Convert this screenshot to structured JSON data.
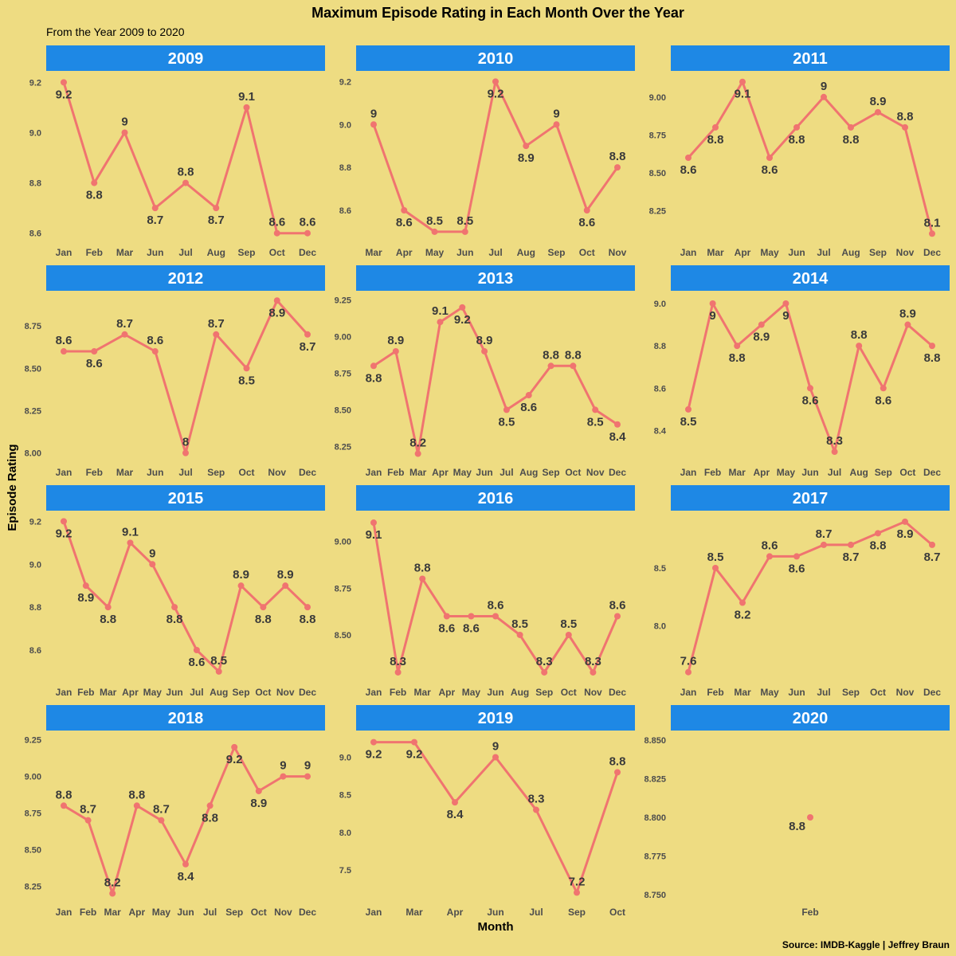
{
  "chart_data": {
    "type": "line",
    "title": "Maximum Episode Rating in Each Month Over the Year",
    "subtitle": "From the Year 2009 to 2020",
    "xlabel": "Month",
    "ylabel": "Episode Rating",
    "caption": "Source: IMDB-Kaggle | Jeffrey Braun",
    "colors": {
      "background": "#EEDC82",
      "strip": "#1E88E5",
      "line": "#F07470",
      "text": "#3A3A3A"
    },
    "facets": [
      {
        "year": "2009",
        "months": [
          "Jan",
          "Feb",
          "Mar",
          "Jun",
          "Jul",
          "Aug",
          "Sep",
          "Oct",
          "Dec"
        ],
        "values": [
          9.2,
          8.8,
          9.0,
          8.7,
          8.8,
          8.7,
          9.1,
          8.6,
          8.6
        ],
        "labels": [
          "9.2",
          "8.8",
          "9",
          "8.7",
          "8.8",
          "8.7",
          "9.1",
          "8.6",
          "8.6"
        ],
        "yticks": [
          "8.6",
          "8.8",
          "9.0",
          "9.2"
        ],
        "ylim": [
          8.58,
          9.22
        ]
      },
      {
        "year": "2010",
        "months": [
          "Mar",
          "Apr",
          "May",
          "Jun",
          "Jul",
          "Aug",
          "Sep",
          "Oct",
          "Nov"
        ],
        "values": [
          9.0,
          8.6,
          8.5,
          8.5,
          9.2,
          8.9,
          9.0,
          8.6,
          8.8
        ],
        "labels": [
          "9",
          "8.6",
          "8.5",
          "8.5",
          "9.2",
          "8.9",
          "9",
          "8.6",
          "8.8"
        ],
        "yticks": [
          "8.6",
          "8.8",
          "9.0",
          "9.2"
        ],
        "ylim": [
          8.47,
          9.22
        ]
      },
      {
        "year": "2011",
        "months": [
          "Jan",
          "Mar",
          "Apr",
          "May",
          "Jun",
          "Jul",
          "Aug",
          "Sep",
          "Nov",
          "Dec"
        ],
        "values": [
          8.6,
          8.8,
          9.1,
          8.6,
          8.8,
          9.0,
          8.8,
          8.9,
          8.8,
          8.1
        ],
        "labels": [
          "8.6",
          "8.8",
          "9.1",
          "8.6",
          "8.8",
          "9",
          "8.8",
          "8.9",
          "8.8",
          "8.1"
        ],
        "yticks": [
          "8.25",
          "8.50",
          "8.75",
          "9.00"
        ],
        "ylim": [
          8.07,
          9.13
        ]
      },
      {
        "year": "2012",
        "months": [
          "Jan",
          "Feb",
          "Mar",
          "Jun",
          "Jul",
          "Sep",
          "Oct",
          "Nov",
          "Dec"
        ],
        "values": [
          8.6,
          8.6,
          8.7,
          8.6,
          8.0,
          8.7,
          8.5,
          8.9,
          8.7
        ],
        "labels": [
          "8.6",
          "8.6",
          "8.7",
          "8.6",
          "8",
          "8.7",
          "8.5",
          "8.9",
          "8.7"
        ],
        "yticks": [
          "8.00",
          "8.25",
          "8.50",
          "8.75"
        ],
        "ylim": [
          7.97,
          8.92
        ]
      },
      {
        "year": "2013",
        "months": [
          "Jan",
          "Feb",
          "Mar",
          "Apr",
          "May",
          "Jun",
          "Jul",
          "Aug",
          "Sep",
          "Oct",
          "Nov",
          "Dec"
        ],
        "values": [
          8.8,
          8.9,
          8.2,
          9.1,
          9.2,
          8.9,
          8.5,
          8.6,
          8.8,
          8.8,
          8.5,
          8.4
        ],
        "labels": [
          "8.8",
          "8.9",
          "8.2",
          "9.1",
          "9.2",
          "8.9",
          "8.5",
          "8.6",
          "8.8",
          "8.8",
          "8.5",
          "8.4"
        ],
        "yticks": [
          "8.25",
          "8.50",
          "8.75",
          "9.00",
          "9.25"
        ],
        "ylim": [
          8.17,
          9.27
        ]
      },
      {
        "year": "2014",
        "months": [
          "Jan",
          "Feb",
          "Mar",
          "Apr",
          "May",
          "Jun",
          "Jul",
          "Aug",
          "Sep",
          "Oct",
          "Dec"
        ],
        "values": [
          8.5,
          9.0,
          8.8,
          8.9,
          9.0,
          8.6,
          8.3,
          8.8,
          8.6,
          8.9,
          8.8
        ],
        "labels": [
          "8.5",
          "9",
          "8.8",
          "8.9",
          "9",
          "8.6",
          "8.3",
          "8.8",
          "8.6",
          "8.9",
          "8.8"
        ],
        "yticks": [
          "8.4",
          "8.6",
          "8.8",
          "9.0"
        ],
        "ylim": [
          8.27,
          9.03
        ]
      },
      {
        "year": "2015",
        "months": [
          "Jan",
          "Feb",
          "Mar",
          "Apr",
          "May",
          "Jun",
          "Jul",
          "Aug",
          "Sep",
          "Oct",
          "Nov",
          "Dec"
        ],
        "values": [
          9.2,
          8.9,
          8.8,
          9.1,
          9.0,
          8.8,
          8.6,
          8.5,
          8.9,
          8.8,
          8.9,
          8.8
        ],
        "labels": [
          "9.2",
          "8.9",
          "8.8",
          "9.1",
          "9",
          "8.8",
          "8.6",
          "8.5",
          "8.9",
          "8.8",
          "8.9",
          "8.8"
        ],
        "yticks": [
          "8.6",
          "8.8",
          "9.0",
          "9.2"
        ],
        "ylim": [
          8.47,
          9.22
        ]
      },
      {
        "year": "2016",
        "months": [
          "Jan",
          "Feb",
          "Mar",
          "Apr",
          "May",
          "Jun",
          "Aug",
          "Sep",
          "Oct",
          "Nov",
          "Dec"
        ],
        "values": [
          9.1,
          8.3,
          8.8,
          8.6,
          8.6,
          8.6,
          8.5,
          8.3,
          8.5,
          8.3,
          8.6
        ],
        "labels": [
          "9.1",
          "8.3",
          "8.8",
          "8.6",
          "8.6",
          "8.6",
          "8.5",
          "8.3",
          "8.5",
          "8.3",
          "8.6"
        ],
        "yticks": [
          "8.50",
          "8.75",
          "9.00"
        ],
        "ylim": [
          8.27,
          9.13
        ]
      },
      {
        "year": "2017",
        "months": [
          "Jan",
          "Feb",
          "Mar",
          "May",
          "Jun",
          "Jul",
          "Sep",
          "Oct",
          "Nov",
          "Dec"
        ],
        "values": [
          7.6,
          8.5,
          8.2,
          8.6,
          8.6,
          8.7,
          8.7,
          8.8,
          8.9,
          8.7
        ],
        "labels": [
          "7.6",
          "8.5",
          "8.2",
          "8.6",
          "8.6",
          "8.7",
          "8.7",
          "8.8",
          "8.9",
          "8.7"
        ],
        "yticks": [
          "8.0",
          "8.5"
        ],
        "ylim": [
          7.55,
          8.94
        ]
      },
      {
        "year": "2018",
        "months": [
          "Jan",
          "Feb",
          "Mar",
          "Apr",
          "May",
          "Jun",
          "Jul",
          "Sep",
          "Oct",
          "Nov",
          "Dec"
        ],
        "values": [
          8.8,
          8.7,
          8.2,
          8.8,
          8.7,
          8.4,
          8.8,
          9.2,
          8.9,
          9.0,
          9.0
        ],
        "labels": [
          "8.8",
          "8.7",
          "8.2",
          "8.8",
          "8.7",
          "8.4",
          "8.8",
          "9.2",
          "8.9",
          "9",
          "9"
        ],
        "yticks": [
          "8.25",
          "8.50",
          "8.75",
          "9.00",
          "9.25"
        ],
        "ylim": [
          8.17,
          9.27
        ]
      },
      {
        "year": "2019",
        "months": [
          "Jan",
          "Mar",
          "Apr",
          "Jun",
          "Jul",
          "Sep",
          "Oct"
        ],
        "values": [
          9.2,
          9.2,
          8.4,
          9.0,
          8.3,
          7.2,
          8.8
        ],
        "labels": [
          "9.2",
          "9.2",
          "8.4",
          "9",
          "8.3",
          "7.2",
          "8.8"
        ],
        "yticks": [
          "7.5",
          "8.0",
          "8.5",
          "9.0"
        ],
        "ylim": [
          7.13,
          9.27
        ]
      },
      {
        "year": "2020",
        "months": [
          "Feb"
        ],
        "values": [
          8.8
        ],
        "labels": [
          "8.8"
        ],
        "yticks": [
          "8.750",
          "8.775",
          "8.800",
          "8.825",
          "8.850"
        ],
        "ylim": [
          8.748,
          8.852
        ]
      }
    ]
  }
}
